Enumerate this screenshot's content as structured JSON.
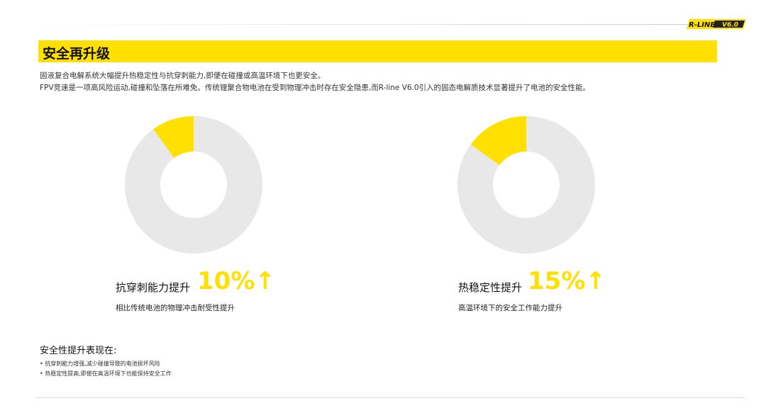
{
  "logo": {
    "text": "R-LINE V6.0"
  },
  "header": {
    "title": "安全再升级"
  },
  "description": [
    "固液复合电解系统大幅提升热稳定性与抗穿刺能力,即便在碰撞或高温环境下也更安全。",
    "FPV竞速是一项高风险运动,碰撞和坠落在所难免。传统锂聚合物电池在受到物理冲击时存在安全隐患,而R-line V6.0引入的固态电解质技术显著提升了电池的安全性能。"
  ],
  "chart_data": [
    {
      "type": "pie",
      "style": "donut",
      "values": [
        10,
        90
      ],
      "colors": [
        "#ffe000",
        "#e8e8e8"
      ],
      "label": "抗穿刺能力提升",
      "value_text": "10%",
      "arrow": "↑",
      "subtitle": "相比传统电池的物理冲击耐受性提升"
    },
    {
      "type": "pie",
      "style": "donut",
      "values": [
        15,
        85
      ],
      "colors": [
        "#ffe000",
        "#e8e8e8"
      ],
      "label": "热稳定性提升",
      "value_text": "15%",
      "arrow": "↑",
      "subtitle": "高温环境下的安全工作能力提升"
    }
  ],
  "summary": {
    "title": "安全性提升表现在:",
    "bullets": [
      "• 抗穿刺能力增强,减少碰撞导致的电池损坏风险",
      "• 热稳定性提高,即使在高温环境下也能保持安全工作"
    ]
  }
}
